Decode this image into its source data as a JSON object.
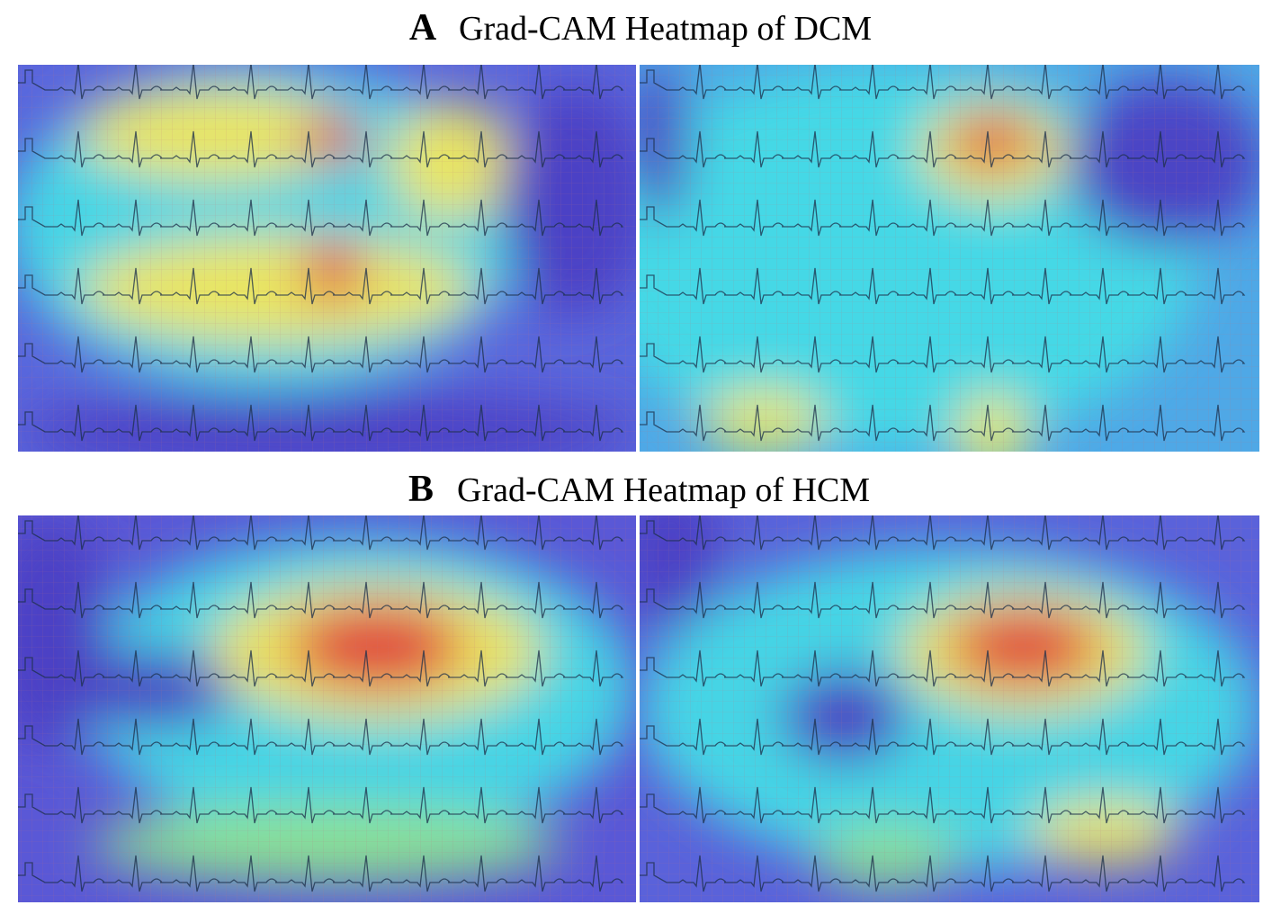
{
  "figure": {
    "sections": [
      {
        "letter": "A",
        "title": "Grad-CAM Heatmap of DCM"
      },
      {
        "letter": "B",
        "title": "Grad-CAM Heatmap of HCM"
      }
    ]
  }
}
